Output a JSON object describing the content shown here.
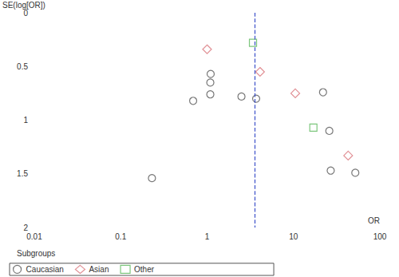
{
  "chart_data": {
    "type": "scatter",
    "x_label": "OR",
    "y_label": "SE(log[OR])",
    "log": "x",
    "xlim": [
      0.01,
      100
    ],
    "xticks": [
      0.01,
      0.1,
      1,
      10,
      100
    ],
    "ylim": [
      2,
      0
    ],
    "yticks": [
      0,
      0.5,
      1,
      1.5,
      2
    ],
    "grid": false,
    "legend": "bottom",
    "legend_title": "Subgroups",
    "reference_x": 3.6,
    "reference_color": "#3b4fc9",
    "reference_line_style": "dashed",
    "series": [
      {
        "name": "Caucasian",
        "color": "#555555",
        "marker": "circle",
        "x": [
          1.1,
          1.09,
          1.09,
          0.69,
          2.5,
          3.7,
          0.23,
          22,
          26,
          27,
          52
        ],
        "values": [
          0.57,
          0.65,
          0.76,
          0.82,
          0.78,
          0.8,
          1.54,
          0.74,
          1.1,
          1.47,
          1.49
        ]
      },
      {
        "name": "Asian",
        "color": "#d9747a",
        "marker": "diamond",
        "x": [
          1.0,
          4.1,
          10.5,
          43
        ],
        "values": [
          0.34,
          0.55,
          0.75,
          1.33
        ]
      },
      {
        "name": "Other",
        "color": "#5cb85c",
        "marker": "square",
        "x": [
          3.4,
          17
        ],
        "values": [
          0.28,
          1.07
        ]
      }
    ]
  }
}
